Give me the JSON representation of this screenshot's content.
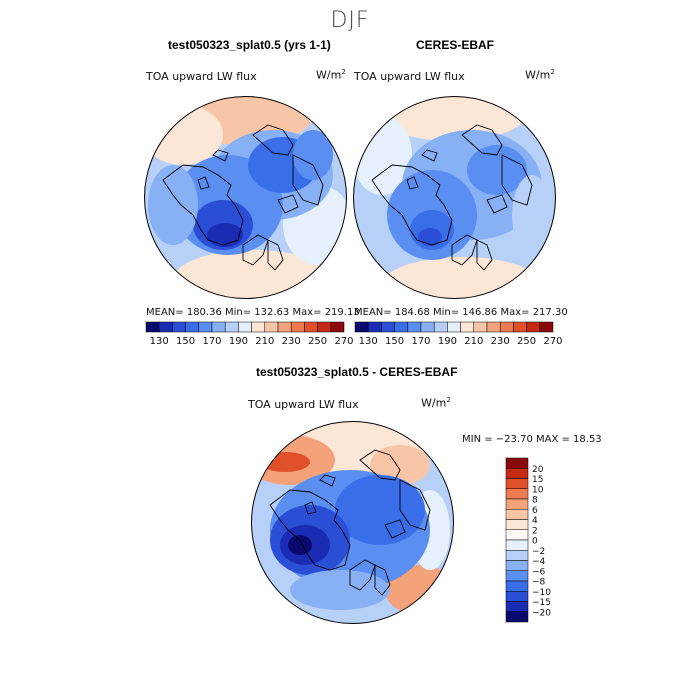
{
  "season_title": "DJF",
  "panels": {
    "model": {
      "title": "test050323_splat0.5 (yrs 1-1)",
      "variable": "TOA upward LW flux",
      "units_base": "W/m",
      "units_exp": "2",
      "stats": "MEAN= 180.36   Min= 132.63   Max= 219.13"
    },
    "obs": {
      "title": "CERES-EBAF",
      "variable": "TOA upward LW flux",
      "units_base": "W/m",
      "units_exp": "2",
      "stats": "MEAN= 184.68   Min= 146.86   Max= 217.30"
    },
    "diff": {
      "title": "test050323_splat0.5 - CERES-EBAF",
      "variable": "TOA upward LW flux",
      "units_base": "W/m",
      "units_exp": "2",
      "stats": "MIN = −23.70  MAX =  18.53"
    }
  },
  "chart_data": [
    {
      "type": "heatmap",
      "name": "test050323_splat0.5 (yrs 1-1)",
      "projection": "polar-stereographic-north",
      "mean": 180.36,
      "min": 132.63,
      "max": 219.13,
      "colorbar": {
        "orientation": "horizontal",
        "tick_labels": [
          "130",
          "150",
          "170",
          "190",
          "210",
          "230",
          "250",
          "270"
        ],
        "colors": [
          "#0a0a6e",
          "#1a2cb4",
          "#2a4fd6",
          "#3a6ee8",
          "#5a8ef0",
          "#88b0f4",
          "#b6d0f8",
          "#e6f0fc",
          "#fce6d6",
          "#f8c6a6",
          "#f4a27a",
          "#ee7a50",
          "#e0502a",
          "#c42a14",
          "#8a0a0a"
        ]
      }
    },
    {
      "type": "heatmap",
      "name": "CERES-EBAF",
      "projection": "polar-stereographic-north",
      "mean": 184.68,
      "min": 146.86,
      "max": 217.3,
      "colorbar": {
        "orientation": "horizontal",
        "tick_labels": [
          "130",
          "150",
          "170",
          "190",
          "210",
          "230",
          "250",
          "270"
        ],
        "colors": [
          "#0a0a6e",
          "#1a2cb4",
          "#2a4fd6",
          "#3a6ee8",
          "#5a8ef0",
          "#88b0f4",
          "#b6d0f8",
          "#e6f0fc",
          "#fce6d6",
          "#f8c6a6",
          "#f4a27a",
          "#ee7a50",
          "#e0502a",
          "#c42a14",
          "#8a0a0a"
        ]
      }
    },
    {
      "type": "heatmap",
      "name": "test050323_splat0.5 - CERES-EBAF",
      "projection": "polar-stereographic-north",
      "min": -23.7,
      "max": 18.53,
      "colorbar": {
        "orientation": "vertical",
        "tick_labels": [
          "20",
          "15",
          "10",
          "8",
          "6",
          "4",
          "2",
          "0",
          "−2",
          "−4",
          "−6",
          "−8",
          "−10",
          "−15",
          "−20"
        ],
        "colors": [
          "#8a0a0a",
          "#c42a14",
          "#e0502a",
          "#ee7a50",
          "#f4a27a",
          "#f8c6a6",
          "#fce6d6",
          "#fff8f2",
          "#e6f0fc",
          "#b6d0f8",
          "#88b0f4",
          "#5a8ef0",
          "#3a6ee8",
          "#2a4fd6",
          "#1a2cb4",
          "#0a0a6e"
        ]
      }
    }
  ]
}
